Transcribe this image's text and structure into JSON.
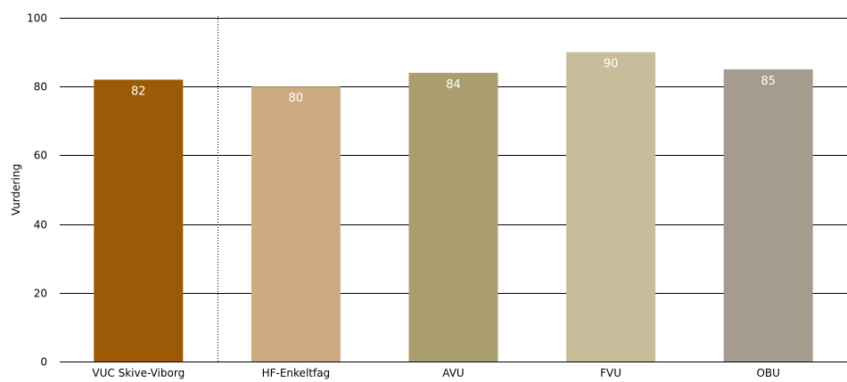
{
  "chart_data": {
    "type": "bar",
    "categories": [
      "VUC Skive-Viborg",
      "HF-Enkeltfag",
      "AVU",
      "FVU",
      "OBU"
    ],
    "values": [
      82,
      80,
      84,
      90,
      85
    ],
    "data_labels": [
      "82",
      "80",
      "84",
      "90",
      "85"
    ],
    "colors": [
      "#9c5a06",
      "#cdab82",
      "#aa9e6e",
      "#c6bd9b",
      "#a59b8f"
    ],
    "ylabel": "Vurdering",
    "ylim": [
      0,
      100
    ],
    "yticks": [
      0,
      20,
      40,
      60,
      80,
      100
    ],
    "ytick_labels": [
      "0",
      "20",
      "40",
      "60",
      "80",
      "100"
    ],
    "grid": true,
    "separator_after_index": 0
  }
}
